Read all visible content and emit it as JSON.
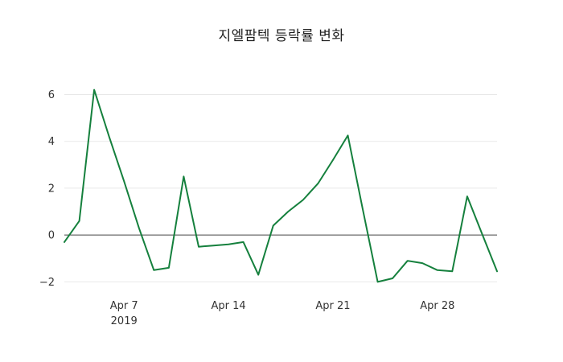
{
  "chart_data": {
    "type": "line",
    "title": "지엘팜텍 등락률 변화",
    "xlabel": "",
    "ylabel": "",
    "ylim": [
      -2.4,
      6.6
    ],
    "grid": true,
    "legend": "none",
    "colors": {
      "series": "#15803d",
      "zero_line": "#444444",
      "gridline": "#e8e8e8",
      "tick_label": "#333333",
      "background": "#ffffff"
    },
    "x": [
      "2019-04-03",
      "2019-04-04",
      "2019-04-05",
      "2019-04-06",
      "2019-04-07",
      "2019-04-08",
      "2019-04-09",
      "2019-04-10",
      "2019-04-11",
      "2019-04-12",
      "2019-04-13",
      "2019-04-14",
      "2019-04-15",
      "2019-04-16",
      "2019-04-17",
      "2019-04-18",
      "2019-04-19",
      "2019-04-20",
      "2019-04-21",
      "2019-04-22",
      "2019-04-23",
      "2019-04-24",
      "2019-04-25",
      "2019-04-26",
      "2019-04-27",
      "2019-04-28",
      "2019-04-29",
      "2019-04-30",
      "2019-05-01",
      "2019-05-02"
    ],
    "values": [
      -0.3,
      0.6,
      6.2,
      4.2,
      2.3,
      0.3,
      -1.5,
      -1.4,
      2.5,
      -0.5,
      -0.45,
      -0.4,
      -0.3,
      -1.7,
      0.4,
      1.0,
      1.5,
      2.2,
      3.2,
      4.25,
      1.1,
      -2.0,
      -1.85,
      -1.1,
      -1.2,
      -1.5,
      -1.55,
      1.65,
      0.05,
      -1.55
    ],
    "y_ticks": [
      -2,
      0,
      2,
      4,
      6
    ],
    "x_ticks": [
      {
        "date": "2019-04-07",
        "label": "Apr 7",
        "sublabel": "2019"
      },
      {
        "date": "2019-04-14",
        "label": "Apr 14",
        "sublabel": ""
      },
      {
        "date": "2019-04-21",
        "label": "Apr 21",
        "sublabel": ""
      },
      {
        "date": "2019-04-28",
        "label": "Apr 28",
        "sublabel": ""
      }
    ]
  }
}
